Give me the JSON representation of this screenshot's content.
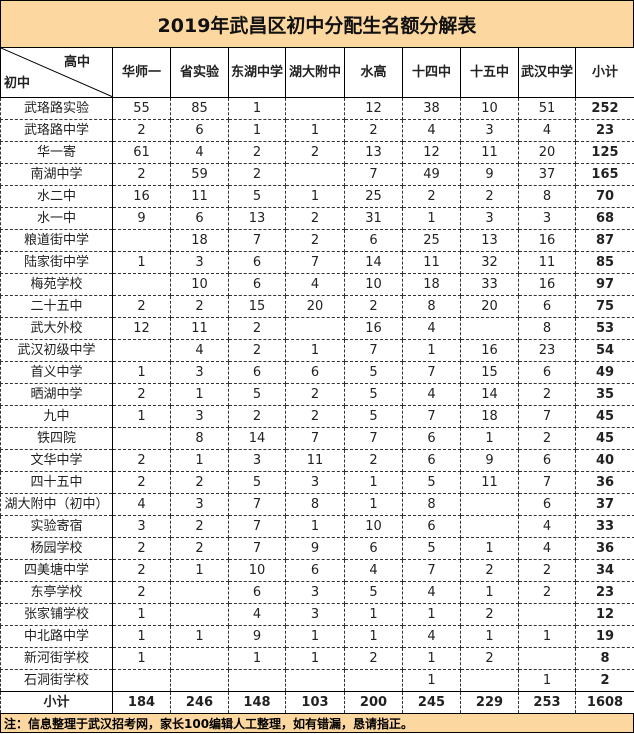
{
  "title": "2019年武昌区初中分配生名额分解表",
  "corner": {
    "top": "高中",
    "bottom": "初中"
  },
  "columns": [
    "华师一",
    "省实验",
    "东湖中学",
    "湖大附中",
    "水高",
    "十四中",
    "十五中",
    "武汉中学",
    "小计"
  ],
  "rows": [
    {
      "name": "武珞路实验",
      "values": [
        "55",
        "85",
        "1",
        "",
        "12",
        "38",
        "10",
        "51",
        "252"
      ]
    },
    {
      "name": "武珞路中学",
      "values": [
        "2",
        "6",
        "1",
        "1",
        "2",
        "4",
        "3",
        "4",
        "23"
      ]
    },
    {
      "name": "华一寄",
      "values": [
        "61",
        "4",
        "2",
        "2",
        "13",
        "12",
        "11",
        "20",
        "125"
      ]
    },
    {
      "name": "南湖中学",
      "values": [
        "2",
        "59",
        "2",
        "",
        "7",
        "49",
        "9",
        "37",
        "165"
      ]
    },
    {
      "name": "水二中",
      "values": [
        "16",
        "11",
        "5",
        "1",
        "25",
        "2",
        "2",
        "8",
        "70"
      ]
    },
    {
      "name": "水一中",
      "values": [
        "9",
        "6",
        "13",
        "2",
        "31",
        "1",
        "3",
        "3",
        "68"
      ]
    },
    {
      "name": "粮道街中学",
      "values": [
        "",
        "18",
        "7",
        "2",
        "6",
        "25",
        "13",
        "16",
        "87"
      ]
    },
    {
      "name": "陆家街中学",
      "values": [
        "1",
        "3",
        "6",
        "7",
        "14",
        "11",
        "32",
        "11",
        "85"
      ]
    },
    {
      "name": "梅苑学校",
      "values": [
        "",
        "10",
        "6",
        "4",
        "10",
        "18",
        "33",
        "16",
        "97"
      ]
    },
    {
      "name": "二十五中",
      "values": [
        "2",
        "2",
        "15",
        "20",
        "2",
        "8",
        "20",
        "6",
        "75"
      ]
    },
    {
      "name": "武大外校",
      "values": [
        "12",
        "11",
        "2",
        "",
        "16",
        "4",
        "",
        "8",
        "53"
      ]
    },
    {
      "name": "武汉初级中学",
      "values": [
        "",
        "4",
        "2",
        "1",
        "7",
        "1",
        "16",
        "23",
        "54"
      ]
    },
    {
      "name": "首义中学",
      "values": [
        "1",
        "3",
        "6",
        "6",
        "5",
        "7",
        "15",
        "6",
        "49"
      ]
    },
    {
      "name": "晒湖中学",
      "values": [
        "2",
        "1",
        "5",
        "2",
        "5",
        "4",
        "14",
        "2",
        "35"
      ]
    },
    {
      "name": "九中",
      "values": [
        "1",
        "3",
        "2",
        "2",
        "5",
        "7",
        "18",
        "7",
        "45"
      ]
    },
    {
      "name": "铁四院",
      "values": [
        "",
        "8",
        "14",
        "7",
        "7",
        "6",
        "1",
        "2",
        "45"
      ]
    },
    {
      "name": "文华中学",
      "values": [
        "2",
        "1",
        "3",
        "11",
        "2",
        "6",
        "9",
        "6",
        "40"
      ]
    },
    {
      "name": "四十五中",
      "values": [
        "2",
        "2",
        "5",
        "3",
        "1",
        "5",
        "11",
        "7",
        "36"
      ]
    },
    {
      "name": "湖大附中（初中）",
      "values": [
        "4",
        "3",
        "7",
        "8",
        "1",
        "8",
        "",
        "6",
        "37"
      ]
    },
    {
      "name": "实验寄宿",
      "values": [
        "3",
        "2",
        "7",
        "1",
        "10",
        "6",
        "",
        "4",
        "33"
      ]
    },
    {
      "name": "杨园学校",
      "values": [
        "2",
        "2",
        "7",
        "9",
        "6",
        "5",
        "1",
        "4",
        "36"
      ]
    },
    {
      "name": "四美塘中学",
      "values": [
        "2",
        "1",
        "10",
        "6",
        "4",
        "7",
        "2",
        "2",
        "34"
      ]
    },
    {
      "name": "东亭学校",
      "values": [
        "2",
        "",
        "6",
        "3",
        "5",
        "4",
        "1",
        "2",
        "23"
      ]
    },
    {
      "name": "张家铺学校",
      "values": [
        "1",
        "",
        "4",
        "3",
        "1",
        "1",
        "2",
        "",
        "12"
      ]
    },
    {
      "name": "中北路中学",
      "values": [
        "1",
        "1",
        "9",
        "1",
        "1",
        "4",
        "1",
        "1",
        "19"
      ]
    },
    {
      "name": "新河街学校",
      "values": [
        "1",
        "",
        "1",
        "1",
        "2",
        "1",
        "2",
        "",
        "8"
      ]
    },
    {
      "name": "石洞街学校",
      "values": [
        "",
        "",
        "",
        "",
        "",
        "1",
        "",
        "1",
        "2"
      ]
    }
  ],
  "total": {
    "name": "小计",
    "values": [
      "184",
      "246",
      "148",
      "103",
      "200",
      "245",
      "229",
      "253",
      "1608"
    ]
  },
  "footer": "注：信息整理于武汉招考网，家长100编辑人工整理，如有错漏，恳请指正。"
}
